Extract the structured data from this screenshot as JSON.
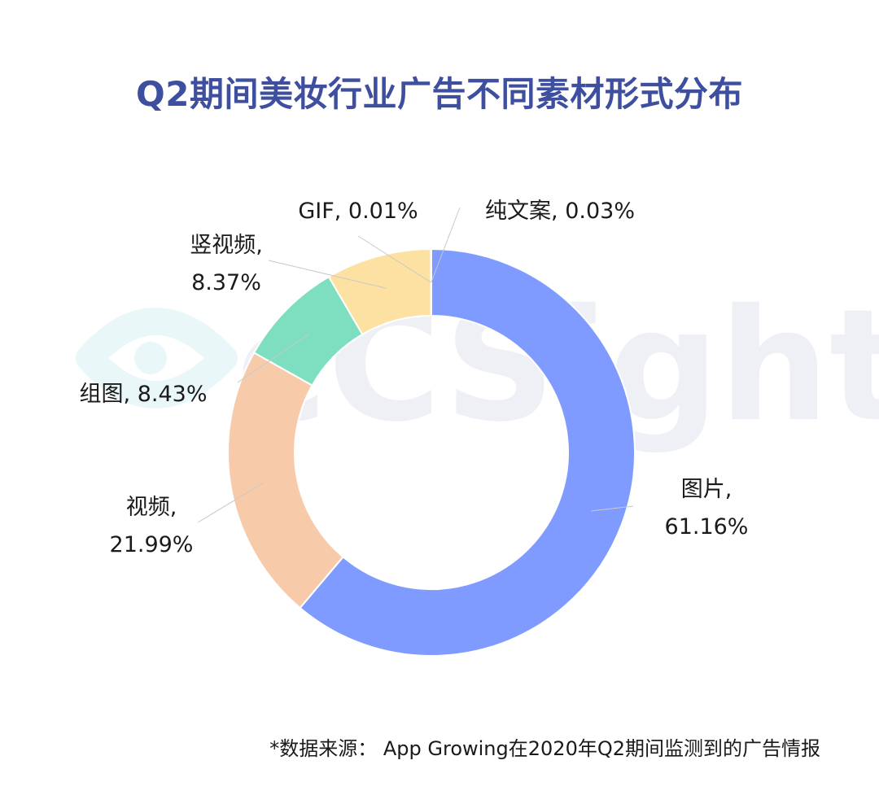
{
  "chart_data": {
    "type": "pie",
    "title": "Q2期间美妆行业广告不同素材形式分布",
    "categories": [
      "图片",
      "视频",
      "组图",
      "竖视频",
      "GIF",
      "纯文案"
    ],
    "values": [
      61.16,
      21.99,
      8.43,
      8.37,
      0.01,
      0.03
    ],
    "labels": [
      [
        "图片,",
        "61.16%"
      ],
      [
        "视频,",
        "21.99%"
      ],
      [
        "组图, 8.43%"
      ],
      [
        "竖视频,",
        "8.37%"
      ],
      [
        "GIF, 0.01%"
      ],
      [
        "纯文案, 0.03%"
      ]
    ],
    "colors": [
      "#7f9bff",
      "#f7cbaa",
      "#7ddfc0",
      "#fde1a2",
      "#e8e8e8",
      "#e8e8e8"
    ],
    "donut": true,
    "legend": "none",
    "source": "*数据来源： App Growing在2020年Q2期间监测到的广告情报"
  },
  "watermark": "cCSight"
}
